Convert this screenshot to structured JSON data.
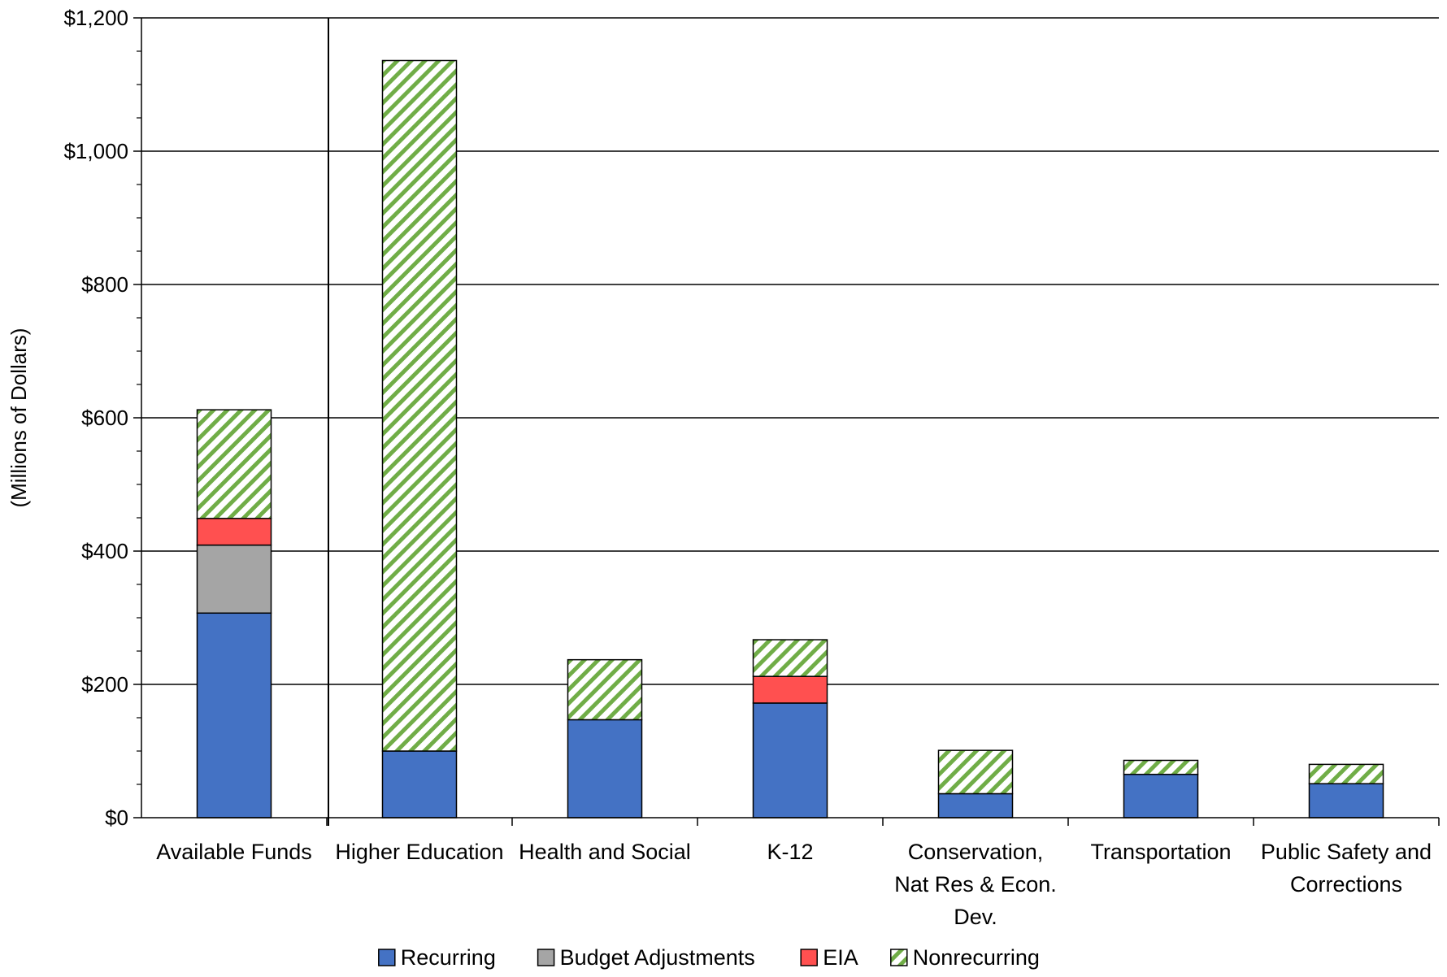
{
  "chart_data": {
    "type": "bar",
    "stacked": true,
    "title": "",
    "xlabel": "",
    "ylabel": "(Millions of Dollars)",
    "ylim": [
      0,
      1200
    ],
    "y_ticks": [
      0,
      200,
      400,
      600,
      800,
      1000,
      1200
    ],
    "y_tick_labels": [
      "$0",
      "$200",
      "$400",
      "$600",
      "$800",
      "$1,000",
      "$1,200"
    ],
    "grid": "horizontal",
    "legend": "bottom",
    "categories": [
      [
        "Available Funds"
      ],
      [
        "Higher Education"
      ],
      [
        "Health and Social"
      ],
      [
        "K-12"
      ],
      [
        "Conservation,",
        "Nat Res & Econ.",
        "Dev."
      ],
      [
        "Transportation"
      ],
      [
        "Public Safety and",
        "Corrections"
      ]
    ],
    "series": [
      {
        "name": "Recurring",
        "color": "#4472C4",
        "pattern": "solid",
        "values": [
          307,
          100,
          147,
          172,
          36,
          65,
          51
        ]
      },
      {
        "name": "Budget Adjustments",
        "color": "#A5A5A5",
        "pattern": "solid",
        "values": [
          102,
          0,
          0,
          0,
          0,
          0,
          0
        ]
      },
      {
        "name": "EIA",
        "color": "#FF5050",
        "pattern": "solid",
        "values": [
          40,
          0,
          0,
          40,
          0,
          0,
          0
        ]
      },
      {
        "name": "Nonrecurring",
        "color": "#70AD47",
        "pattern": "hatch",
        "values": [
          163,
          1036,
          90,
          55,
          65,
          21,
          29
        ]
      }
    ]
  }
}
